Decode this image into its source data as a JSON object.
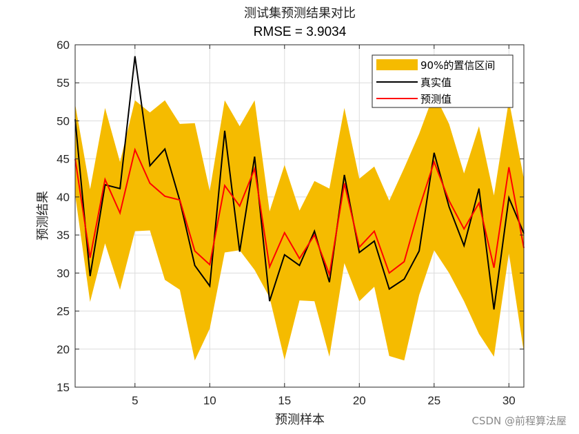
{
  "chart_data": {
    "type": "line",
    "title": "测试集预测结果对比",
    "subtitle": "RMSE = 3.9034",
    "xlabel": "预测样本",
    "ylabel": "预测结果",
    "xlim": [
      1,
      31
    ],
    "ylim": [
      15,
      60
    ],
    "xticks": [
      5,
      10,
      15,
      20,
      25,
      30
    ],
    "yticks": [
      15,
      20,
      25,
      30,
      35,
      40,
      45,
      50,
      55,
      60
    ],
    "grid": true,
    "legend_position": "top-right",
    "x": [
      1,
      2,
      3,
      4,
      5,
      6,
      7,
      8,
      9,
      10,
      11,
      12,
      13,
      14,
      15,
      16,
      17,
      18,
      19,
      20,
      21,
      22,
      23,
      24,
      25,
      26,
      27,
      28,
      29,
      30,
      31
    ],
    "band": {
      "name": "90%的置信区间",
      "color": "#F5BB00",
      "upper": [
        52.2,
        41.0,
        51.7,
        44.6,
        52.7,
        51.1,
        52.7,
        49.6,
        49.7,
        40.8,
        52.7,
        49.3,
        52.7,
        38.1,
        44.2,
        38.2,
        42.1,
        41.1,
        51.7,
        42.4,
        44.0,
        39.5,
        43.8,
        48.3,
        53.6,
        49.6,
        43.1,
        49.3,
        40.2,
        52.7,
        42.4
      ],
      "lower": [
        40.3,
        26.2,
        33.9,
        27.8,
        35.5,
        35.6,
        29.1,
        27.8,
        18.5,
        22.7,
        32.7,
        33.0,
        30.4,
        26.8,
        18.6,
        26.4,
        26.3,
        19.0,
        31.3,
        26.3,
        28.2,
        19.1,
        18.5,
        27.1,
        33.0,
        30.0,
        26.3,
        22.0,
        19.0,
        32.6,
        19.6
      ]
    },
    "series": [
      {
        "name": "真实值",
        "color": "#000000",
        "values": [
          50.2,
          29.6,
          41.6,
          41.1,
          58.5,
          44.1,
          46.3,
          39.5,
          31.0,
          28.3,
          48.7,
          32.8,
          45.3,
          26.3,
          32.4,
          31.0,
          35.5,
          28.8,
          42.9,
          32.7,
          34.2,
          27.9,
          29.2,
          32.9,
          45.8,
          38.7,
          33.6,
          41.1,
          25.2,
          39.9,
          35.2
        ]
      },
      {
        "name": "预测值",
        "color": "#FF0000",
        "values": [
          45.0,
          32.0,
          42.3,
          37.9,
          46.2,
          41.8,
          40.1,
          39.6,
          32.9,
          31.1,
          41.5,
          38.8,
          43.7,
          30.8,
          35.3,
          31.9,
          35.0,
          29.8,
          41.8,
          33.4,
          35.5,
          30.0,
          31.5,
          38.5,
          44.6,
          39.5,
          35.8,
          39.2,
          30.7,
          43.9,
          33.3
        ]
      }
    ]
  },
  "watermark": "CSDN @前程算法屋"
}
